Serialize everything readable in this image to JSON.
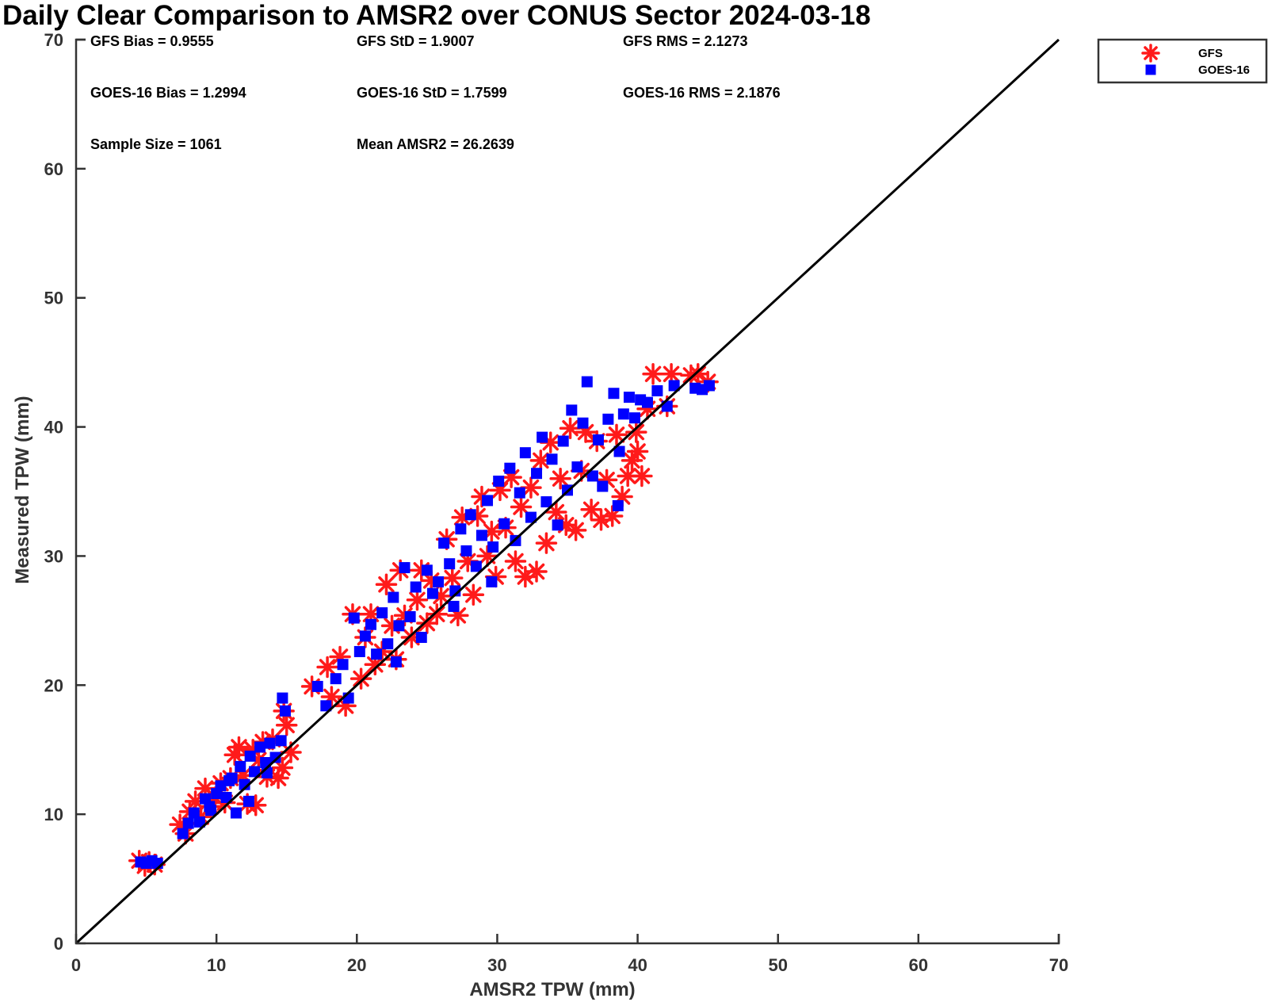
{
  "chart_data": {
    "type": "scatter",
    "title": "Daily Clear Comparison to AMSR2 over CONUS Sector 2024-03-18",
    "xlabel": "AMSR2 TPW (mm)",
    "ylabel": "Measured TPW (mm)",
    "xlim": [
      0,
      70
    ],
    "ylim": [
      0,
      70
    ],
    "xticks": [
      "0",
      "10",
      "20",
      "30",
      "40",
      "50",
      "60",
      "70"
    ],
    "yticks": [
      "0",
      "10",
      "20",
      "30",
      "40",
      "50",
      "60",
      "70"
    ],
    "grid": false,
    "legend_position": "outside top-right",
    "reference_line": {
      "from": [
        0,
        0
      ],
      "to": [
        70,
        70
      ],
      "color": "#000000"
    },
    "stats": [
      [
        "GFS Bias = 0.9555",
        "GFS StD = 1.9007",
        "GFS RMS = 2.1273"
      ],
      [
        "GOES-16 Bias = 1.2994",
        "GOES-16 StD = 1.7599",
        "GOES-16 RMS = 2.1876"
      ],
      [
        "Sample Size = 1061",
        "Mean AMSR2 = 26.2639",
        ""
      ]
    ],
    "series": [
      {
        "name": "GFS",
        "marker": "asterisk",
        "color": "#ff1a1a",
        "points": [
          [
            4.5,
            6.4
          ],
          [
            5.2,
            6.3
          ],
          [
            5.6,
            6.1
          ],
          [
            4.9,
            6.0
          ],
          [
            7.4,
            9.2
          ],
          [
            7.8,
            8.5
          ],
          [
            8.1,
            10.2
          ],
          [
            8.5,
            11.0
          ],
          [
            8.9,
            9.8
          ],
          [
            9.2,
            12.0
          ],
          [
            9.6,
            10.6
          ],
          [
            9.9,
            11.3
          ],
          [
            10.3,
            12.4
          ],
          [
            10.6,
            10.9
          ],
          [
            11.0,
            12.8
          ],
          [
            11.3,
            14.6
          ],
          [
            11.6,
            15.2
          ],
          [
            11.9,
            13.0
          ],
          [
            12.2,
            10.8
          ],
          [
            12.6,
            15.0
          ],
          [
            13.0,
            14.2
          ],
          [
            13.3,
            15.6
          ],
          [
            13.6,
            12.9
          ],
          [
            14.0,
            15.8
          ],
          [
            14.4,
            12.8
          ],
          [
            14.7,
            13.6
          ],
          [
            15.0,
            16.9
          ],
          [
            14.8,
            18.0
          ],
          [
            15.3,
            14.8
          ],
          [
            12.8,
            10.7
          ],
          [
            16.8,
            19.9
          ],
          [
            17.9,
            21.4
          ],
          [
            18.2,
            19.1
          ],
          [
            18.8,
            22.2
          ],
          [
            19.2,
            18.4
          ],
          [
            19.7,
            25.5
          ],
          [
            20.3,
            20.5
          ],
          [
            20.6,
            23.7
          ],
          [
            21.0,
            25.5
          ],
          [
            21.3,
            21.6
          ],
          [
            21.8,
            22.6
          ],
          [
            22.1,
            27.8
          ],
          [
            22.5,
            24.6
          ],
          [
            22.8,
            22.0
          ],
          [
            23.1,
            28.9
          ],
          [
            23.4,
            25.4
          ],
          [
            23.9,
            23.7
          ],
          [
            24.3,
            26.6
          ],
          [
            24.6,
            28.9
          ],
          [
            25.0,
            24.8
          ],
          [
            25.3,
            28.1
          ],
          [
            25.7,
            25.5
          ],
          [
            26.0,
            26.9
          ],
          [
            26.4,
            31.3
          ],
          [
            26.8,
            28.3
          ],
          [
            27.2,
            25.4
          ],
          [
            27.5,
            33.0
          ],
          [
            27.9,
            29.6
          ],
          [
            28.3,
            27.0
          ],
          [
            28.6,
            33.1
          ],
          [
            28.9,
            34.6
          ],
          [
            29.3,
            30.0
          ],
          [
            29.6,
            31.9
          ],
          [
            29.9,
            28.4
          ],
          [
            30.2,
            35.1
          ],
          [
            30.6,
            32.2
          ],
          [
            31.0,
            36.1
          ],
          [
            31.3,
            29.6
          ],
          [
            31.7,
            33.8
          ],
          [
            32.0,
            28.4
          ],
          [
            32.4,
            35.3
          ],
          [
            32.8,
            28.8
          ],
          [
            33.1,
            37.4
          ],
          [
            33.5,
            31.0
          ],
          [
            33.8,
            38.8
          ],
          [
            34.2,
            33.4
          ],
          [
            34.5,
            36.0
          ],
          [
            34.9,
            32.4
          ],
          [
            35.2,
            39.9
          ],
          [
            35.6,
            32.0
          ],
          [
            36.0,
            36.6
          ],
          [
            36.3,
            39.6
          ],
          [
            36.7,
            33.6
          ],
          [
            37.1,
            38.9
          ],
          [
            37.4,
            32.8
          ],
          [
            37.8,
            35.9
          ],
          [
            38.2,
            33.1
          ],
          [
            38.5,
            39.4
          ],
          [
            38.9,
            34.6
          ],
          [
            39.3,
            36.2
          ],
          [
            39.6,
            37.4
          ],
          [
            40.0,
            38.1
          ],
          [
            40.3,
            36.2
          ],
          [
            39.9,
            39.6
          ],
          [
            41.1,
            44.1
          ],
          [
            42.4,
            44.1
          ],
          [
            43.8,
            44.0
          ],
          [
            44.3,
            44.1
          ],
          [
            45.0,
            43.5
          ],
          [
            42.1,
            41.6
          ],
          [
            40.7,
            41.4
          ]
        ]
      },
      {
        "name": "GOES-16",
        "marker": "square",
        "color": "#0000ff",
        "points": [
          [
            4.6,
            6.3
          ],
          [
            5.0,
            6.2
          ],
          [
            5.4,
            6.4
          ],
          [
            5.8,
            6.2
          ],
          [
            7.6,
            8.5
          ],
          [
            8.0,
            9.3
          ],
          [
            8.4,
            10.1
          ],
          [
            8.8,
            9.4
          ],
          [
            9.2,
            11.2
          ],
          [
            9.6,
            10.3
          ],
          [
            10.0,
            11.6
          ],
          [
            10.3,
            12.2
          ],
          [
            10.7,
            11.3
          ],
          [
            11.1,
            12.8
          ],
          [
            11.4,
            10.1
          ],
          [
            11.7,
            13.7
          ],
          [
            12.0,
            12.3
          ],
          [
            12.4,
            14.5
          ],
          [
            12.7,
            13.3
          ],
          [
            13.1,
            15.2
          ],
          [
            13.5,
            14.0
          ],
          [
            13.8,
            15.5
          ],
          [
            14.2,
            14.4
          ],
          [
            14.6,
            15.7
          ],
          [
            14.9,
            18.0
          ],
          [
            14.7,
            19.0
          ],
          [
            12.3,
            11.0
          ],
          [
            10.9,
            12.6
          ],
          [
            9.5,
            10.6
          ],
          [
            13.6,
            13.2
          ],
          [
            17.2,
            19.9
          ],
          [
            17.8,
            18.4
          ],
          [
            18.5,
            20.5
          ],
          [
            19.0,
            21.6
          ],
          [
            19.4,
            19.0
          ],
          [
            19.8,
            25.2
          ],
          [
            20.2,
            22.6
          ],
          [
            20.6,
            23.8
          ],
          [
            21.0,
            24.7
          ],
          [
            21.4,
            22.4
          ],
          [
            21.8,
            25.6
          ],
          [
            22.2,
            23.2
          ],
          [
            22.6,
            26.8
          ],
          [
            23.0,
            24.6
          ],
          [
            23.4,
            29.1
          ],
          [
            23.8,
            25.3
          ],
          [
            24.2,
            27.6
          ],
          [
            24.6,
            23.7
          ],
          [
            25.0,
            28.9
          ],
          [
            25.4,
            27.1
          ],
          [
            25.8,
            28.0
          ],
          [
            26.2,
            31.0
          ],
          [
            26.6,
            29.4
          ],
          [
            27.0,
            27.3
          ],
          [
            27.4,
            32.1
          ],
          [
            27.8,
            30.4
          ],
          [
            28.1,
            33.2
          ],
          [
            28.5,
            29.2
          ],
          [
            28.9,
            31.6
          ],
          [
            29.3,
            34.3
          ],
          [
            29.7,
            30.7
          ],
          [
            30.1,
            35.8
          ],
          [
            30.5,
            32.5
          ],
          [
            30.9,
            36.8
          ],
          [
            31.3,
            31.2
          ],
          [
            31.6,
            34.9
          ],
          [
            32.0,
            38.0
          ],
          [
            32.4,
            33.0
          ],
          [
            32.8,
            36.4
          ],
          [
            33.2,
            39.2
          ],
          [
            33.5,
            34.2
          ],
          [
            33.9,
            37.5
          ],
          [
            34.3,
            32.4
          ],
          [
            34.7,
            38.9
          ],
          [
            35.0,
            35.1
          ],
          [
            35.3,
            41.3
          ],
          [
            35.7,
            36.9
          ],
          [
            36.1,
            40.3
          ],
          [
            36.4,
            43.5
          ],
          [
            36.8,
            36.2
          ],
          [
            37.2,
            39.0
          ],
          [
            37.5,
            35.4
          ],
          [
            37.9,
            40.6
          ],
          [
            38.3,
            42.6
          ],
          [
            38.7,
            38.1
          ],
          [
            39.0,
            41.0
          ],
          [
            39.4,
            42.3
          ],
          [
            39.8,
            40.7
          ],
          [
            40.2,
            42.1
          ],
          [
            38.6,
            33.9
          ],
          [
            40.7,
            41.9
          ],
          [
            41.4,
            42.8
          ],
          [
            42.1,
            41.6
          ],
          [
            42.6,
            43.2
          ],
          [
            44.1,
            43.0
          ],
          [
            44.6,
            42.9
          ],
          [
            45.1,
            43.2
          ],
          [
            29.6,
            28.0
          ],
          [
            22.8,
            21.8
          ],
          [
            26.9,
            26.1
          ]
        ]
      }
    ]
  }
}
